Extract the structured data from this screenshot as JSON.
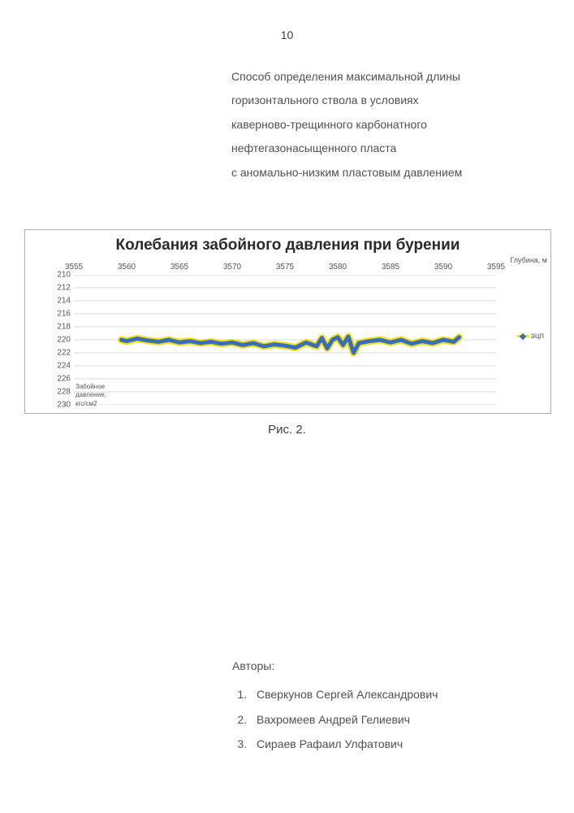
{
  "page_number": "10",
  "description_lines": [
    "Способ определения максимальной длины",
    "горизонтального ствола в условиях",
    "каверново-трещинного карбонатного",
    "нефтегазонасыщенного пласта",
    "с аномально-низким пластовым давлением"
  ],
  "chart": {
    "type": "line",
    "title": "Колебания забойного давления при бурении",
    "x_axis_title": "Глубина, м",
    "y_axis_label_line1": "Забойное",
    "y_axis_label_line2": "давление,",
    "y_axis_label_line3": "кгс/см2",
    "xlim": [
      3555,
      3595
    ],
    "ylim": [
      210,
      230
    ],
    "x_ticks": [
      3555,
      3560,
      3565,
      3570,
      3575,
      3580,
      3585,
      3590,
      3595
    ],
    "y_ticks": [
      210,
      212,
      214,
      216,
      218,
      220,
      222,
      224,
      226,
      228,
      230
    ],
    "grid_color": "#d8d8d8",
    "background_color": "#ffffff",
    "legend_label": "эцп",
    "outer_line_color": "#f0e020",
    "inner_line_color": "#3a6fb7",
    "outer_line_width": 9,
    "inner_line_width": 5,
    "series": {
      "x": [
        3559.5,
        3560,
        3561,
        3562,
        3563,
        3564,
        3565,
        3566,
        3567,
        3568,
        3569,
        3570,
        3571,
        3572,
        3573,
        3574,
        3575,
        3576,
        3577,
        3578,
        3578.5,
        3579,
        3579.5,
        3580,
        3580.5,
        3581,
        3581.5,
        3582,
        3583,
        3584,
        3585,
        3586,
        3587,
        3588,
        3589,
        3590,
        3591,
        3591.5
      ],
      "y": [
        220.0,
        220.2,
        219.8,
        220.1,
        220.3,
        220.0,
        220.4,
        220.2,
        220.5,
        220.3,
        220.6,
        220.4,
        220.8,
        220.5,
        221.0,
        220.7,
        220.9,
        221.2,
        220.4,
        221.0,
        219.7,
        221.3,
        220.0,
        219.6,
        220.8,
        219.5,
        222.0,
        220.5,
        220.2,
        220.0,
        220.4,
        220.0,
        220.6,
        220.2,
        220.5,
        220.0,
        220.3,
        219.6
      ]
    },
    "title_fontsize": 19,
    "tick_fontsize": 10
  },
  "caption": "Рис. 2.",
  "authors_heading": "Авторы:",
  "authors": [
    "Сверкунов Сергей Александрович",
    "Вахромеев Андрей  Гелиевич",
    "Сираев Рафаил Улфатович"
  ]
}
